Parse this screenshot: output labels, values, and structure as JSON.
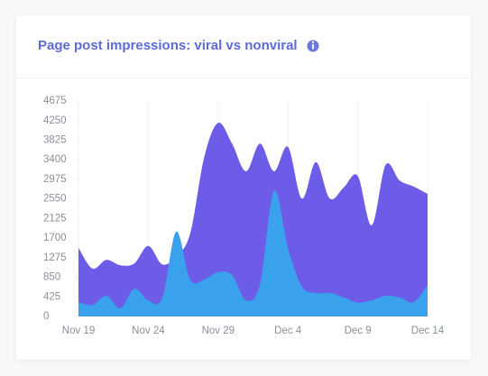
{
  "chart_data": {
    "type": "area",
    "title": "Page post impressions: viral vs nonviral",
    "categories": [
      "Nov 19",
      null,
      null,
      null,
      null,
      "Nov 24",
      null,
      null,
      null,
      null,
      "Nov 29",
      null,
      null,
      null,
      null,
      "Dec 4",
      null,
      null,
      null,
      null,
      "Dec 9",
      null,
      null,
      null,
      null,
      "Dec 14"
    ],
    "series": [
      {
        "color": "#6c5ce7",
        "values": [
          1490,
          1040,
          1230,
          1110,
          1150,
          1530,
          1130,
          1300,
          1800,
          3450,
          4200,
          3750,
          3150,
          3750,
          3150,
          3680,
          2560,
          3350,
          2560,
          2800,
          3050,
          1980,
          3290,
          2950,
          2820,
          2660
        ]
      },
      {
        "color": "#3aa1ec",
        "values": [
          310,
          250,
          450,
          180,
          600,
          350,
          400,
          1840,
          800,
          800,
          960,
          900,
          350,
          700,
          2720,
          1490,
          650,
          510,
          510,
          410,
          300,
          350,
          450,
          410,
          310,
          680
        ]
      }
    ],
    "ylim": [
      0,
      4675
    ],
    "yticks": [
      0,
      425,
      850,
      1275,
      1700,
      2125,
      2550,
      2975,
      3400,
      3825,
      4250,
      4675
    ],
    "grid": true
  }
}
